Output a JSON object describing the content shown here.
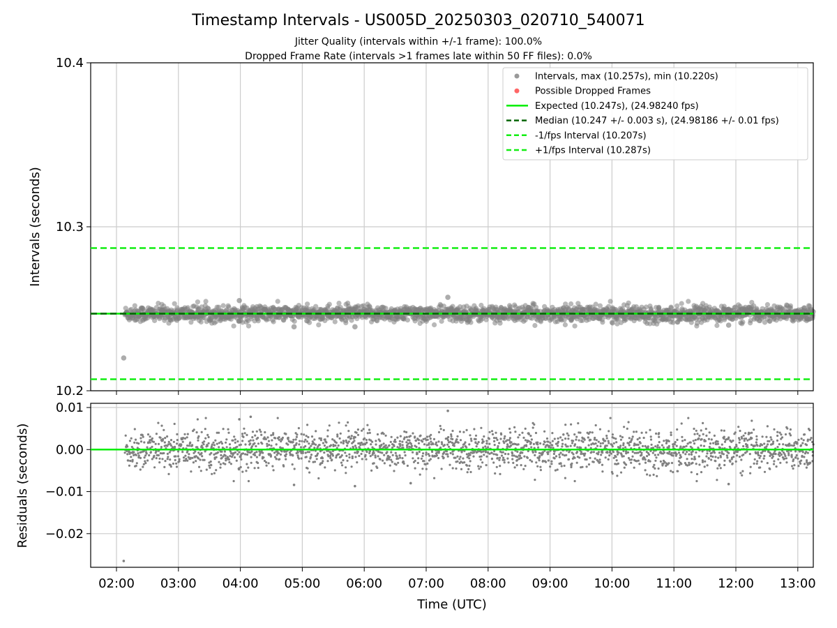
{
  "title": "Timestamp Intervals - US005D_20250303_020710_540071",
  "subtitle_1": "Jitter Quality (intervals within +/-1 frame): 100.0%",
  "subtitle_2": "Dropped Frame Rate (intervals >1 frames late within 50 FF files): 0.0%",
  "colors": {
    "points": "#808080",
    "dropped": "#ff6666",
    "expected": "#00ee00",
    "median": "#006400",
    "bounds": "#11ee11",
    "grid": "#cccccc"
  },
  "chart_data": [
    {
      "type": "scatter",
      "name": "intervals",
      "ylabel": "Intervals (seconds)",
      "xlim": [
        "01:35",
        "13:15"
      ],
      "ylim": [
        10.2,
        10.4
      ],
      "y_ticks": [
        "10.2",
        "10.3",
        "10.4"
      ],
      "grid": true,
      "legend_position": "top-right",
      "legend": [
        {
          "label": "Intervals, max (10.257s), min (10.220s)",
          "marker": "dot",
          "color": "#999999"
        },
        {
          "label": "Possible Dropped Frames",
          "marker": "dot",
          "color": "#ff6666"
        },
        {
          "label": "Expected (10.247s), (24.98240 fps)",
          "marker": "solid",
          "color": "#00ee00"
        },
        {
          "label": "Median (10.247 +/- 0.003 s), (24.98186 +/- 0.01 fps)",
          "marker": "dashed",
          "color": "#006400"
        },
        {
          "label": "-1/fps Interval (10.207s)",
          "marker": "dashed",
          "color": "#11ee11"
        },
        {
          "label": "+1/fps Interval (10.287s)",
          "marker": "dashed",
          "color": "#11ee11"
        }
      ],
      "lines": {
        "expected": 10.247,
        "median": 10.247,
        "lower": 10.207,
        "upper": 10.287
      },
      "data_range": {
        "start": "02:07",
        "end": "13:15",
        "center": 10.247,
        "spread": 0.0025,
        "max": 10.257,
        "min": 10.22
      },
      "notable_points": [
        {
          "x": "02:07",
          "y": 10.22
        },
        {
          "x": "07:21",
          "y": 10.257
        },
        {
          "x": "03:59",
          "y": 10.255
        },
        {
          "x": "04:52",
          "y": 10.239
        },
        {
          "x": "05:51",
          "y": 10.239
        },
        {
          "x": "11:53",
          "y": 10.24
        }
      ]
    },
    {
      "type": "scatter",
      "name": "residuals",
      "xlabel": "Time (UTC)",
      "ylabel": "Residuals (seconds)",
      "xlim": [
        "01:35",
        "13:15"
      ],
      "ylim": [
        -0.028,
        0.011
      ],
      "y_ticks": [
        "0.01",
        "0.00",
        "−0.01",
        "−0.02"
      ],
      "x_ticks": [
        "02:00",
        "03:00",
        "04:00",
        "05:00",
        "06:00",
        "07:00",
        "08:00",
        "09:00",
        "10:00",
        "11:00",
        "12:00",
        "13:00"
      ],
      "grid": true,
      "zero_line": 0.0,
      "data_range": {
        "start": "02:07",
        "end": "13:15",
        "center": 0.0,
        "spread": 0.0025
      },
      "notable_points": [
        {
          "x": "02:07",
          "y": -0.0265
        },
        {
          "x": "07:21",
          "y": 0.0092
        },
        {
          "x": "03:59",
          "y": 0.0072
        },
        {
          "x": "04:10",
          "y": 0.0078
        },
        {
          "x": "05:51",
          "y": -0.0087
        },
        {
          "x": "04:52",
          "y": -0.0084
        },
        {
          "x": "11:53",
          "y": -0.0082
        },
        {
          "x": "06:45",
          "y": -0.008
        }
      ]
    }
  ]
}
